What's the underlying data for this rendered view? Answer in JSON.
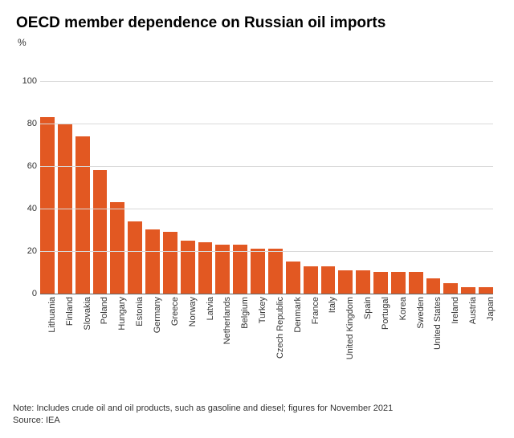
{
  "chart": {
    "type": "bar",
    "title": "OECD member dependence on Russian oil imports",
    "y_unit_label": "%",
    "ylim_max": 110,
    "yticks": [
      0,
      20,
      40,
      60,
      80,
      100
    ],
    "grid_color": "#d9d9d9",
    "axis_color": "#666666",
    "background_color": "#ffffff",
    "bar_color": "#e25822",
    "tick_label_color": "#333333",
    "tick_fontsize": 11,
    "title_fontsize": 19,
    "categories": [
      "Lithuania",
      "Finland",
      "Slovakia",
      "Poland",
      "Hungary",
      "Estonia",
      "Germany",
      "Greece",
      "Norway",
      "Latvia",
      "Netherlands",
      "Belgium",
      "Turkey",
      "Czech Republic",
      "Denmark",
      "France",
      "Italy",
      "United Kingdom",
      "Spain",
      "Portugal",
      "Korea",
      "Sweden",
      "United States",
      "Ireland",
      "Austria",
      "Japan"
    ],
    "values": [
      83,
      80,
      74,
      58,
      43,
      34,
      30,
      29,
      25,
      24,
      23,
      23,
      21,
      21,
      15,
      13,
      13,
      11,
      11,
      10,
      10,
      10,
      7,
      5,
      3,
      3
    ]
  },
  "footer": {
    "note": "Note: Includes crude oil and oil products, such as gasoline and diesel; figures for November 2021",
    "source": "Source: IEA"
  }
}
